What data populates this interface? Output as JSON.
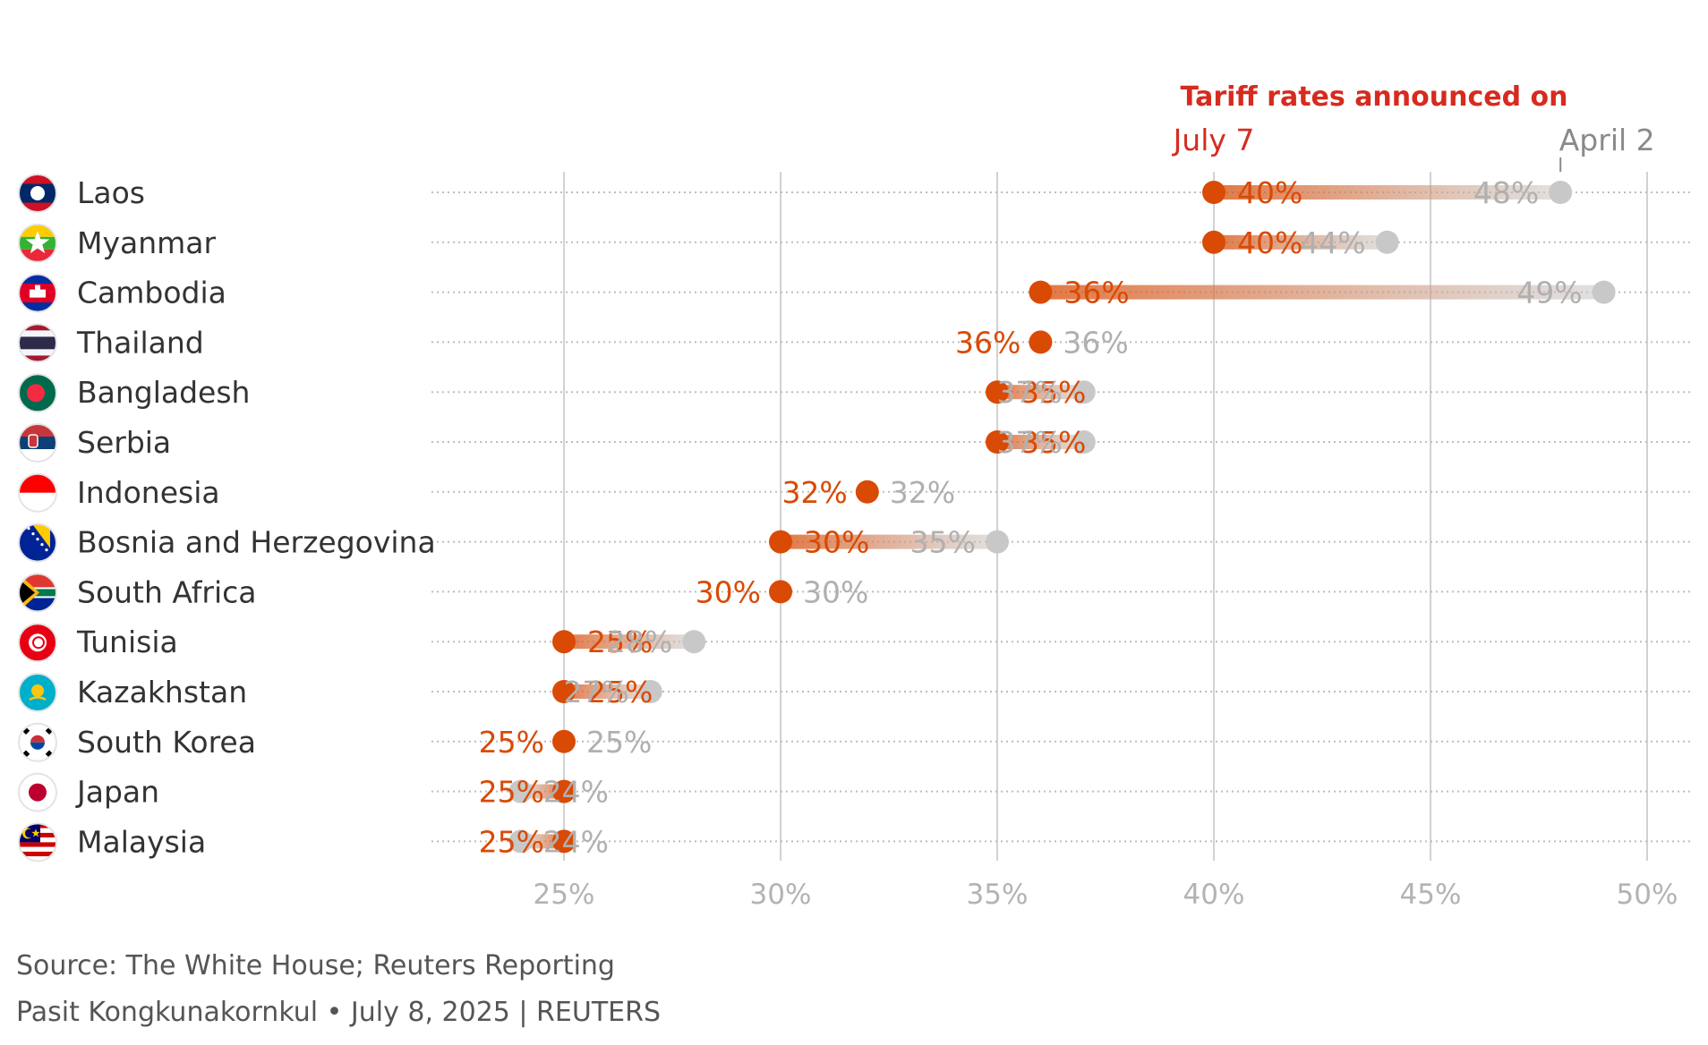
{
  "chart_data": {
    "type": "dumbbell",
    "title": "Tariff rates announced on",
    "series": [
      {
        "name": "July 7",
        "color": "#d94a05"
      },
      {
        "name": "April 2",
        "color": "#c8c8c8"
      }
    ],
    "xlim": [
      22.5,
      51
    ],
    "x_ticks": [
      25,
      30,
      35,
      40,
      45,
      50
    ],
    "x_tick_labels": [
      "25%",
      "30%",
      "35%",
      "40%",
      "45%",
      "50%"
    ],
    "grid": true,
    "rows": [
      {
        "country": "Laos",
        "flag": "laos-flag-icon",
        "july7": 40,
        "april2": 48,
        "july7_label": "40%",
        "april2_label": "48%"
      },
      {
        "country": "Myanmar",
        "flag": "myanmar-flag-icon",
        "july7": 40,
        "april2": 44,
        "july7_label": "40%",
        "april2_label": "44%"
      },
      {
        "country": "Cambodia",
        "flag": "cambodia-flag-icon",
        "july7": 36,
        "april2": 49,
        "july7_label": "36%",
        "april2_label": "49%"
      },
      {
        "country": "Thailand",
        "flag": "thailand-flag-icon",
        "july7": 36,
        "april2": 36,
        "july7_label": "36%",
        "april2_label": "36%"
      },
      {
        "country": "Bangladesh",
        "flag": "bangladesh-flag-icon",
        "july7": 35,
        "april2": 37,
        "july7_label": "35%",
        "april2_label": "37%"
      },
      {
        "country": "Serbia",
        "flag": "serbia-flag-icon",
        "july7": 35,
        "april2": 37,
        "july7_label": "35%",
        "april2_label": "37%"
      },
      {
        "country": "Indonesia",
        "flag": "indonesia-flag-icon",
        "july7": 32,
        "april2": 32,
        "july7_label": "32%",
        "april2_label": "32%"
      },
      {
        "country": "Bosnia and Herzegovina",
        "flag": "bosnia-flag-icon",
        "july7": 30,
        "april2": 35,
        "july7_label": "30%",
        "april2_label": "35%"
      },
      {
        "country": "South Africa",
        "flag": "south-africa-flag-icon",
        "july7": 30,
        "april2": 30,
        "july7_label": "30%",
        "april2_label": "30%"
      },
      {
        "country": "Tunisia",
        "flag": "tunisia-flag-icon",
        "july7": 25,
        "april2": 28,
        "july7_label": "25%",
        "april2_label": "28%"
      },
      {
        "country": "Kazakhstan",
        "flag": "kazakhstan-flag-icon",
        "july7": 25,
        "april2": 27,
        "july7_label": "25%",
        "april2_label": "27%"
      },
      {
        "country": "South Korea",
        "flag": "south-korea-flag-icon",
        "july7": 25,
        "april2": 25,
        "july7_label": "25%",
        "april2_label": "25%"
      },
      {
        "country": "Japan",
        "flag": "japan-flag-icon",
        "july7": 25,
        "april2": 24,
        "july7_label": "25%",
        "april2_label": "24%"
      },
      {
        "country": "Malaysia",
        "flag": "malaysia-flag-icon",
        "july7": 25,
        "april2": 24,
        "july7_label": "25%",
        "april2_label": "24%"
      }
    ]
  },
  "footer": {
    "source": "Source: The White House; Reuters Reporting",
    "credit": "Pasit Kongkunakornkul • July 8, 2025 | REUTERS"
  }
}
